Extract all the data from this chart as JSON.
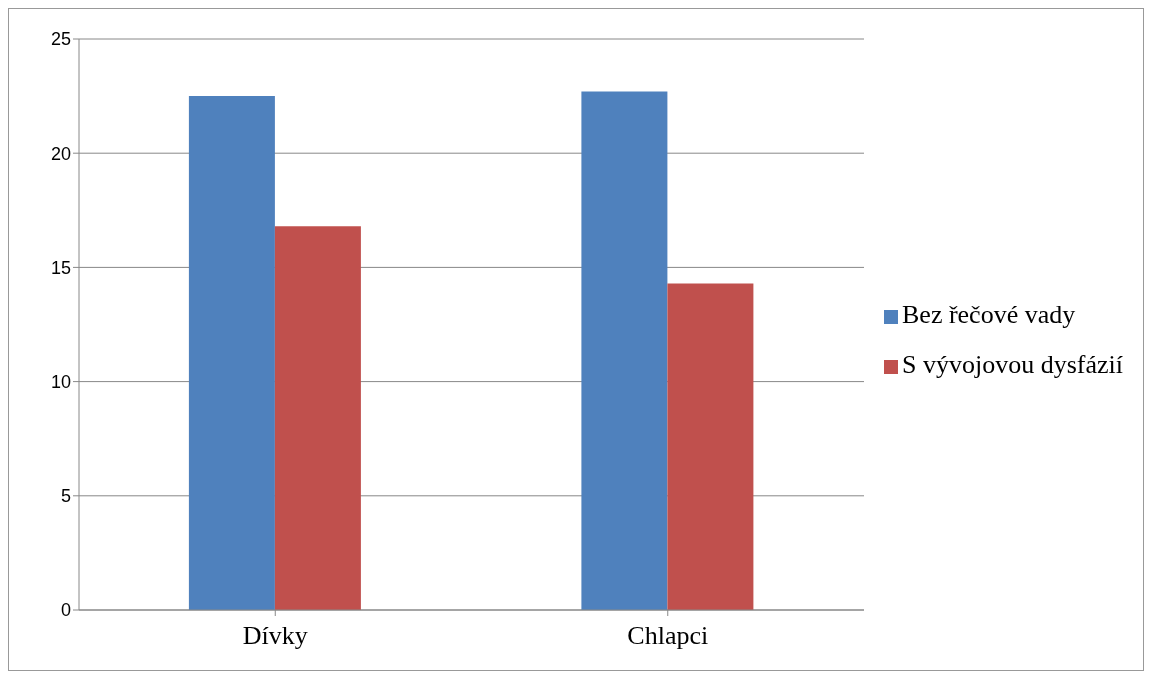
{
  "chart_data": {
    "type": "bar",
    "categories": [
      "Dívky",
      "Chlapci"
    ],
    "series": [
      {
        "name": "Bez řečové vady",
        "color": "#4f81bd",
        "values": [
          22.5,
          22.7
        ]
      },
      {
        "name": "S vývojovou dysfázií",
        "color": "#c0504d",
        "values": [
          16.8,
          14.3
        ]
      }
    ],
    "ylim": [
      0,
      25
    ],
    "yticks": [
      0,
      5,
      10,
      15,
      20,
      25
    ],
    "grid": "y",
    "legend": "right"
  }
}
